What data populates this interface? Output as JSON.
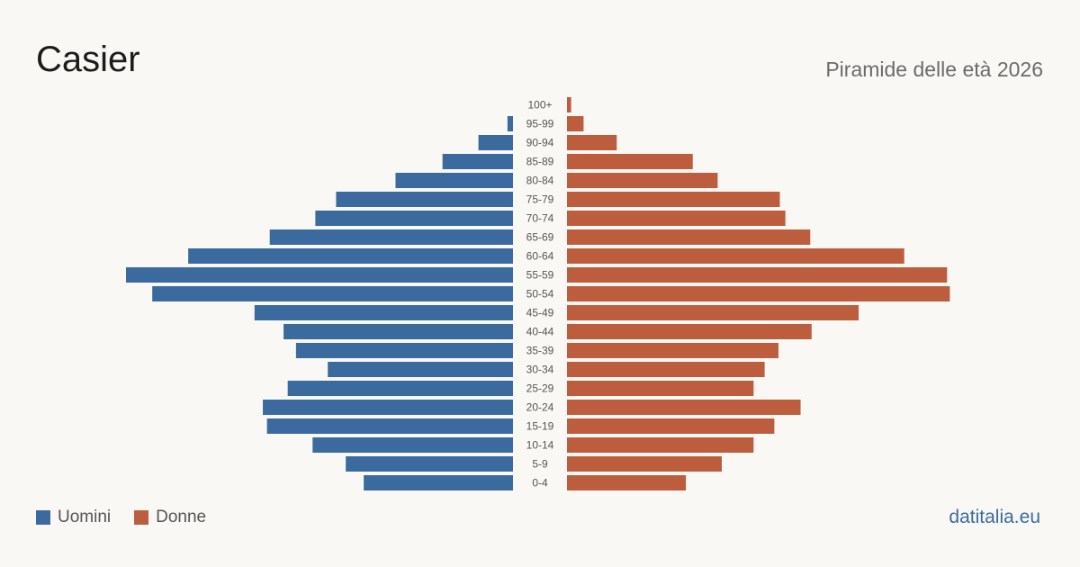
{
  "header": {
    "title": "Casier",
    "subtitle": "Piramide delle età 2026"
  },
  "colors": {
    "men": "#3b6b9e",
    "women": "#bc5e3e",
    "background": "#f9f8f4",
    "label": "#555555"
  },
  "legend": {
    "men_label": "Uomini",
    "women_label": "Donne"
  },
  "brand": "datitalia.eu",
  "chart_data": {
    "type": "bar",
    "orientation": "horizontal-pyramid",
    "categories": [
      "100+",
      "95-99",
      "90-94",
      "85-89",
      "80-84",
      "75-79",
      "70-74",
      "65-69",
      "60-64",
      "55-59",
      "50-54",
      "45-49",
      "40-44",
      "35-39",
      "30-34",
      "25-29",
      "20-24",
      "15-19",
      "10-14",
      "5-9",
      "0-4"
    ],
    "series": [
      {
        "name": "Uomini",
        "values": [
          0,
          4,
          25,
          51,
          85,
          128,
          143,
          176,
          235,
          280,
          261,
          187,
          166,
          157,
          134,
          163,
          181,
          178,
          145,
          121,
          108
        ]
      },
      {
        "name": "Donne",
        "values": [
          3,
          12,
          36,
          91,
          109,
          154,
          158,
          176,
          244,
          275,
          277,
          211,
          177,
          153,
          143,
          135,
          169,
          150,
          135,
          112,
          86
        ]
      }
    ],
    "legend_position": "bottom-left",
    "grid": false
  }
}
